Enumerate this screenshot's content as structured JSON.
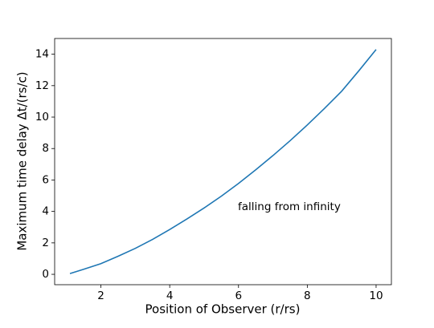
{
  "chart_data": {
    "type": "line",
    "xlabel": "Position of Observer (r/rs)",
    "ylabel": "Maximum time delay Δt/(rs/c)",
    "annotation": "falling from infinity",
    "x": [
      1.1,
      1.5,
      2,
      2.5,
      3,
      3.5,
      4,
      4.5,
      5,
      5.5,
      6,
      6.5,
      7,
      7.5,
      8,
      8.5,
      9,
      9.5,
      10
    ],
    "series": [
      {
        "color": "#1f77b4",
        "values": [
          0.05,
          0.32,
          0.68,
          1.15,
          1.65,
          2.22,
          2.85,
          3.52,
          4.22,
          4.97,
          5.78,
          6.65,
          7.55,
          8.5,
          9.5,
          10.55,
          11.65,
          12.95,
          14.3
        ]
      }
    ],
    "xlim": [
      0.655,
      10.445
    ],
    "ylim": [
      -0.66,
      15.0
    ],
    "xticks": [
      2,
      4,
      6,
      8,
      10
    ],
    "yticks": [
      0,
      2,
      4,
      6,
      8,
      10,
      12,
      14
    ],
    "grid": false
  }
}
